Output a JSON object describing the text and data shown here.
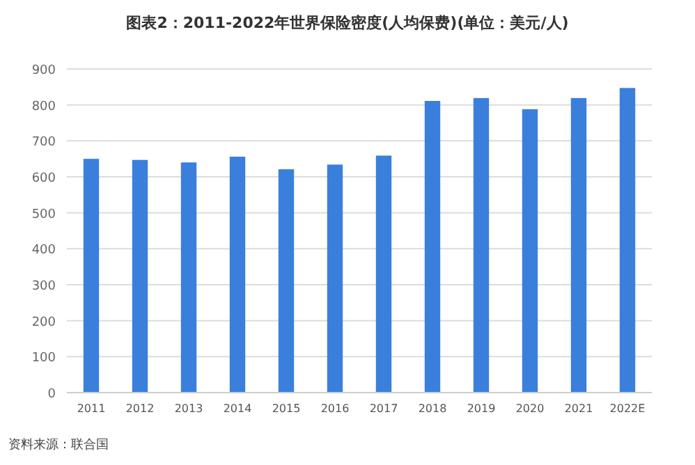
{
  "chart_data": {
    "type": "bar",
    "title": "图表2：2011-2022年世界保险密度(人均保费)(单位：美元/人)",
    "categories": [
      "2011",
      "2012",
      "2013",
      "2014",
      "2015",
      "2016",
      "2017",
      "2018",
      "2019",
      "2020",
      "2021",
      "2022E"
    ],
    "values": [
      650,
      647,
      640,
      656,
      621,
      634,
      659,
      811,
      819,
      788,
      819,
      847
    ],
    "color": "#3a7fdc",
    "ylim": [
      0,
      900
    ],
    "yticks": [
      0,
      100,
      200,
      300,
      400,
      500,
      600,
      700,
      800,
      900
    ],
    "grid": "y",
    "annotations": [
      "资料来源：联合国"
    ]
  }
}
